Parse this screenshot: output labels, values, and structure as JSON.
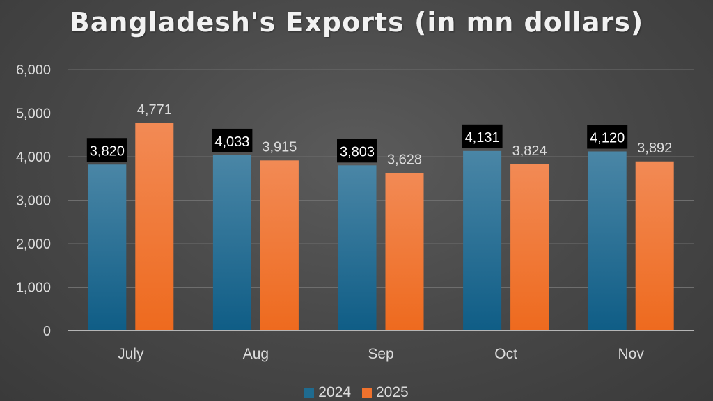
{
  "chart_data": {
    "type": "bar",
    "title": "Bangladesh's Exports (in mn dollars)",
    "categories": [
      "July",
      "Aug",
      "Sep",
      "Oct",
      "Nov"
    ],
    "series": [
      {
        "name": "2024",
        "values": [
          3820,
          4033,
          3803,
          4131,
          4120
        ],
        "labels": [
          "3,820",
          "4,033",
          "3,803",
          "4,131",
          "4,120"
        ],
        "color": "#1f6b8f"
      },
      {
        "name": "2025",
        "values": [
          4771,
          3915,
          3628,
          3824,
          3892
        ],
        "labels": [
          "4,771",
          "3,915",
          "3,628",
          "3,824",
          "3,892"
        ],
        "color": "#f0722d"
      }
    ],
    "ylim": [
      0,
      6000
    ],
    "yticks": [
      0,
      1000,
      2000,
      3000,
      4000,
      5000,
      6000
    ],
    "ytick_labels": [
      "0",
      "1,000",
      "2,000",
      "3,000",
      "4,000",
      "5,000",
      "6,000"
    ],
    "grid": true,
    "legend_position": "bottom"
  }
}
